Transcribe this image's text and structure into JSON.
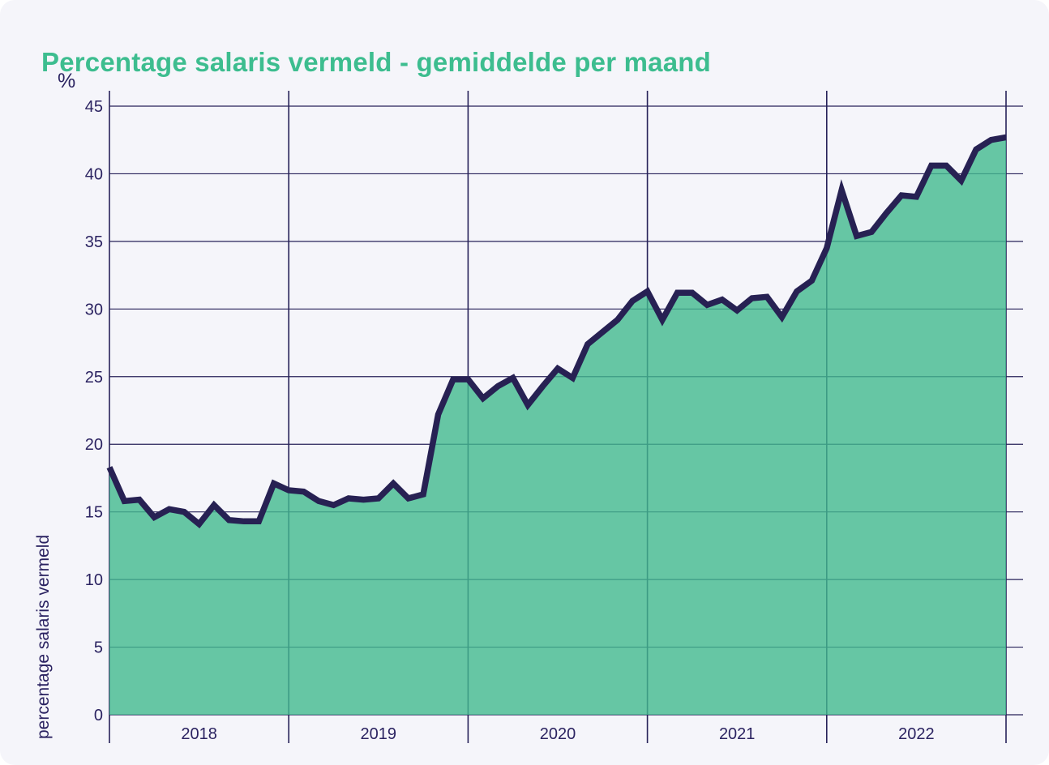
{
  "page": {
    "background_color": "#f5f5fa",
    "outer_background": "#ffffff"
  },
  "chart": {
    "title": "Percentage salaris vermeld - gemiddelde per maand",
    "unit_label": "%",
    "y_axis_title": "percentage salaris vermeld",
    "colors": {
      "title": "#3dbd8f",
      "text": "#2b2361",
      "grid": "#272259",
      "line": "#272153",
      "fill": "#42ba8e",
      "fill_opacity": 0.8
    }
  },
  "chart_data": {
    "type": "area",
    "title": "Percentage salaris vermeld - gemiddelde per maand",
    "xlabel": "",
    "ylabel": "percentage salaris vermeld",
    "unit": "%",
    "ylim": [
      0,
      45
    ],
    "yticks": [
      0,
      5,
      10,
      15,
      20,
      25,
      30,
      35,
      40,
      45
    ],
    "grid": "on",
    "legend": "none",
    "frequency": "monthly",
    "x_start_month": "2018-01",
    "x_end_month": "2023-01",
    "x_year_labels": [
      "2018",
      "2019",
      "2020",
      "2021",
      "2022"
    ],
    "series": [
      {
        "name": "percentage salaris vermeld",
        "values": [
          18.3,
          15.8,
          15.9,
          14.6,
          15.2,
          15.0,
          14.1,
          15.5,
          14.4,
          14.3,
          14.3,
          17.1,
          16.6,
          16.5,
          15.8,
          15.5,
          16.0,
          15.9,
          16.0,
          17.1,
          16.0,
          16.3,
          22.2,
          24.8,
          24.8,
          23.4,
          24.3,
          24.9,
          22.9,
          24.3,
          25.6,
          24.9,
          27.4,
          28.3,
          29.2,
          30.6,
          31.3,
          29.2,
          31.2,
          31.2,
          30.3,
          30.7,
          29.9,
          30.8,
          30.9,
          29.4,
          31.3,
          32.1,
          34.5,
          38.8,
          35.4,
          35.7,
          37.1,
          38.4,
          38.3,
          40.6,
          40.6,
          39.5,
          41.8,
          42.5,
          42.7
        ]
      }
    ]
  }
}
